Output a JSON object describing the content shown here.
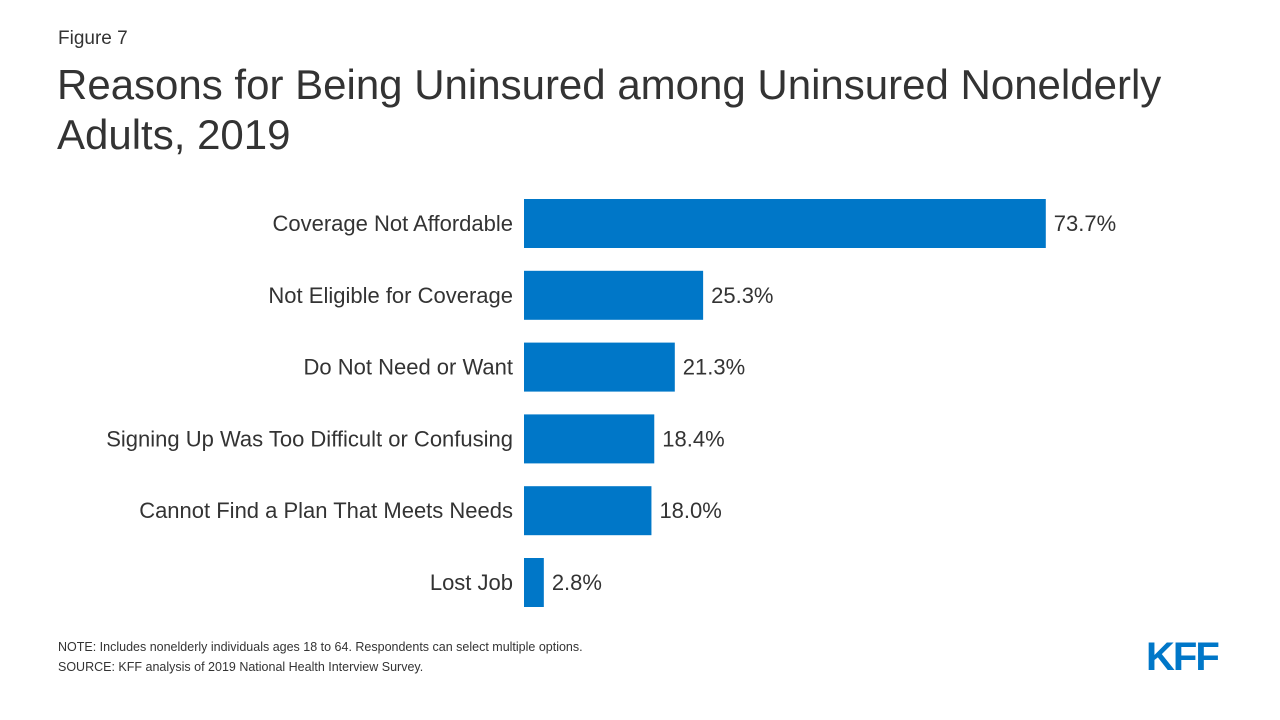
{
  "figure_label": "Figure 7",
  "title": "Reasons for Being Uninsured among Uninsured Nonelderly Adults, 2019",
  "chart_data": {
    "type": "bar",
    "orientation": "horizontal",
    "categories": [
      "Coverage Not Affordable",
      "Not Eligible for Coverage",
      "Do Not Need or Want",
      "Signing Up Was Too Difficult or Confusing",
      "Cannot Find a Plan That Meets Needs",
      "Lost Job"
    ],
    "values": [
      73.7,
      25.3,
      21.3,
      18.4,
      18.0,
      2.8
    ],
    "value_labels": [
      "73.7%",
      "25.3%",
      "21.3%",
      "18.4%",
      "18.0%",
      "2.8%"
    ],
    "xlim": [
      0,
      100
    ],
    "unit": "%",
    "grid": false,
    "bar_color": "#0077C8"
  },
  "notes": {
    "note": "NOTE: Includes nonelderly individuals ages 18 to 64. Respondents can select multiple options.",
    "source": "SOURCE: KFF analysis of 2019 National Health Interview Survey."
  },
  "logo": {
    "text": "KFF",
    "color": "#0077C8"
  }
}
